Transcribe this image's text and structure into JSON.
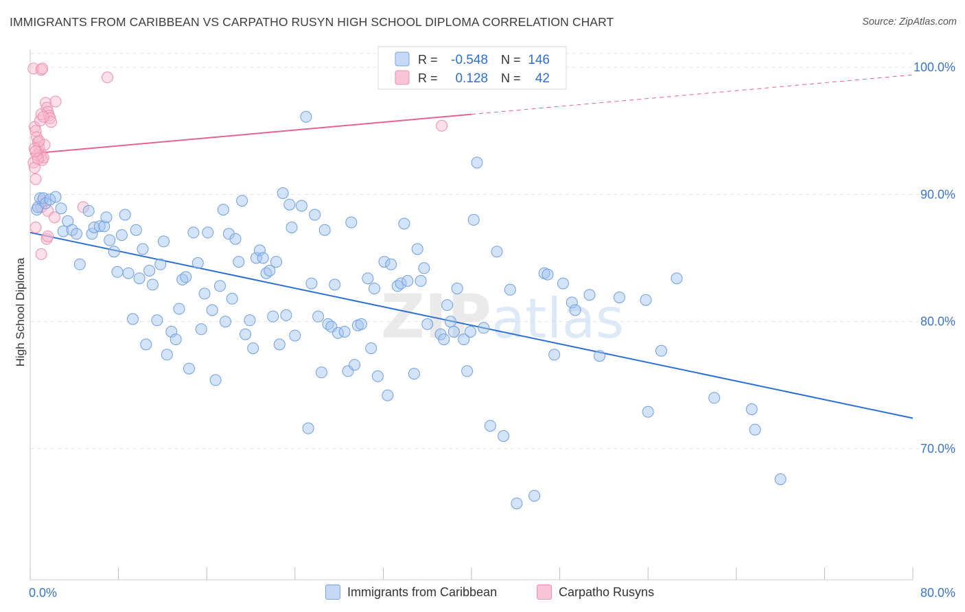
{
  "title": "IMMIGRANTS FROM CARIBBEAN VS CARPATHO RUSYN HIGH SCHOOL DIPLOMA CORRELATION CHART",
  "source": "Source: ZipAtlas.com",
  "watermark": {
    "zip": "ZIP",
    "atlas": "atlas"
  },
  "legend": {
    "r_label": "R =",
    "n_label": "N =",
    "rows": [
      {
        "r": "-0.548",
        "n": "146",
        "swatch_fill": "#c5d8f5",
        "swatch_stroke": "#7aa3e0"
      },
      {
        "r": "0.128",
        "n": "42",
        "swatch_fill": "#f9c5d6",
        "swatch_stroke": "#ec8fb0"
      }
    ]
  },
  "colors": {
    "blue_fill": "rgba(160,195,240,0.45)",
    "blue_stroke": "#6f9ee0",
    "blue_line": "#2a6fd1",
    "pink_fill": "rgba(248,185,205,0.45)",
    "pink_stroke": "#ec8fb0",
    "pink_line": "#e2638e",
    "axis_text": "#3b74c9",
    "grid": "#e3e3e3"
  },
  "chart_data": {
    "type": "scatter",
    "title": "IMMIGRANTS FROM CARIBBEAN VS CARPATHO RUSYN HIGH SCHOOL DIPLOMA CORRELATION CHART",
    "xlabel": "",
    "ylabel": "High School Diploma",
    "xlim": [
      0,
      80
    ],
    "ylim": [
      60,
      102
    ],
    "x_tick_labels": [
      "0.0%",
      "80.0%"
    ],
    "y_ticks": [
      70,
      80,
      90,
      100
    ],
    "y_tick_labels": [
      "70.0%",
      "80.0%",
      "90.0%",
      "100.0%"
    ],
    "grid": true,
    "legend_position": "top-center",
    "series": [
      {
        "name": "Immigrants from Caribbean",
        "color": "#7aa3e0",
        "trend": {
          "x": [
            0,
            80
          ],
          "y": [
            87.0,
            72.4
          ]
        },
        "points": [
          [
            0.6,
            88.8
          ],
          [
            0.7,
            89.0
          ],
          [
            0.9,
            89.7
          ],
          [
            1.2,
            89.7
          ],
          [
            1.4,
            89.3
          ],
          [
            1.8,
            89.6
          ],
          [
            2.3,
            89.8
          ],
          [
            2.8,
            88.9
          ],
          [
            3.0,
            87.1
          ],
          [
            3.4,
            87.9
          ],
          [
            3.8,
            87.2
          ],
          [
            4.2,
            86.9
          ],
          [
            4.5,
            84.5
          ],
          [
            5.3,
            88.7
          ],
          [
            5.6,
            86.9
          ],
          [
            5.8,
            87.4
          ],
          [
            6.3,
            87.5
          ],
          [
            6.7,
            87.5
          ],
          [
            6.9,
            88.2
          ],
          [
            7.2,
            86.4
          ],
          [
            7.6,
            85.5
          ],
          [
            7.9,
            83.9
          ],
          [
            8.3,
            86.8
          ],
          [
            8.6,
            88.4
          ],
          [
            8.9,
            83.8
          ],
          [
            9.3,
            80.2
          ],
          [
            9.6,
            87.2
          ],
          [
            9.9,
            83.4
          ],
          [
            10.2,
            85.7
          ],
          [
            10.5,
            78.2
          ],
          [
            10.8,
            84.0
          ],
          [
            11.1,
            82.9
          ],
          [
            11.5,
            80.1
          ],
          [
            11.8,
            84.5
          ],
          [
            12.1,
            86.3
          ],
          [
            12.4,
            77.4
          ],
          [
            12.8,
            79.2
          ],
          [
            13.2,
            78.6
          ],
          [
            13.5,
            81.0
          ],
          [
            13.8,
            83.3
          ],
          [
            14.1,
            83.5
          ],
          [
            14.4,
            76.3
          ],
          [
            14.8,
            87.0
          ],
          [
            15.2,
            84.6
          ],
          [
            15.5,
            79.4
          ],
          [
            15.8,
            82.2
          ],
          [
            16.1,
            87.0
          ],
          [
            16.5,
            80.9
          ],
          [
            16.8,
            75.4
          ],
          [
            17.2,
            82.8
          ],
          [
            17.5,
            88.8
          ],
          [
            17.7,
            80.0
          ],
          [
            18.0,
            86.9
          ],
          [
            18.3,
            81.8
          ],
          [
            18.6,
            86.5
          ],
          [
            18.9,
            84.7
          ],
          [
            19.2,
            89.5
          ],
          [
            19.5,
            79.0
          ],
          [
            19.9,
            80.1
          ],
          [
            20.2,
            77.9
          ],
          [
            20.5,
            85.0
          ],
          [
            20.8,
            85.6
          ],
          [
            21.1,
            85.0
          ],
          [
            21.4,
            83.8
          ],
          [
            21.7,
            84.0
          ],
          [
            22.0,
            80.4
          ],
          [
            22.3,
            84.7
          ],
          [
            22.6,
            78.2
          ],
          [
            22.9,
            90.1
          ],
          [
            23.2,
            80.5
          ],
          [
            23.5,
            89.2
          ],
          [
            23.7,
            87.4
          ],
          [
            24.0,
            78.9
          ],
          [
            24.6,
            89.1
          ],
          [
            25.2,
            71.6
          ],
          [
            25.5,
            83.0
          ],
          [
            25.8,
            88.4
          ],
          [
            26.1,
            80.4
          ],
          [
            26.4,
            76.0
          ],
          [
            26.7,
            87.2
          ],
          [
            27.0,
            79.8
          ],
          [
            27.3,
            79.6
          ],
          [
            27.6,
            82.9
          ],
          [
            27.9,
            79.1
          ],
          [
            28.5,
            79.2
          ],
          [
            28.8,
            76.1
          ],
          [
            29.1,
            87.8
          ],
          [
            29.4,
            76.6
          ],
          [
            29.7,
            79.7
          ],
          [
            30.0,
            79.8
          ],
          [
            30.6,
            83.4
          ],
          [
            30.9,
            77.9
          ],
          [
            31.2,
            82.6
          ],
          [
            31.5,
            75.7
          ],
          [
            32.1,
            84.7
          ],
          [
            32.4,
            74.2
          ],
          [
            32.7,
            84.5
          ],
          [
            33.3,
            82.8
          ],
          [
            33.6,
            83.0
          ],
          [
            33.9,
            87.7
          ],
          [
            34.2,
            83.2
          ],
          [
            34.8,
            75.9
          ],
          [
            35.1,
            85.7
          ],
          [
            35.4,
            83.2
          ],
          [
            35.7,
            84.2
          ],
          [
            36.0,
            79.8
          ],
          [
            37.2,
            79.0
          ],
          [
            37.5,
            78.6
          ],
          [
            37.8,
            81.3
          ],
          [
            38.1,
            80.0
          ],
          [
            38.4,
            79.2
          ],
          [
            38.7,
            82.6
          ],
          [
            39.3,
            78.6
          ],
          [
            39.6,
            76.1
          ],
          [
            39.9,
            79.2
          ],
          [
            40.2,
            88.0
          ],
          [
            40.5,
            92.5
          ],
          [
            41.1,
            79.5
          ],
          [
            41.7,
            71.8
          ],
          [
            42.3,
            85.5
          ],
          [
            42.9,
            71.0
          ],
          [
            43.5,
            82.5
          ],
          [
            44.1,
            65.7
          ],
          [
            45.7,
            66.3
          ],
          [
            46.6,
            83.8
          ],
          [
            46.9,
            83.7
          ],
          [
            47.5,
            77.4
          ],
          [
            48.3,
            83.0
          ],
          [
            49.1,
            81.5
          ],
          [
            49.4,
            80.9
          ],
          [
            50.7,
            82.1
          ],
          [
            51.6,
            77.3
          ],
          [
            53.4,
            81.9
          ],
          [
            55.8,
            81.7
          ],
          [
            56.0,
            72.9
          ],
          [
            57.2,
            77.7
          ],
          [
            58.6,
            83.4
          ],
          [
            62.0,
            74.0
          ],
          [
            65.4,
            73.1
          ],
          [
            65.7,
            71.5
          ],
          [
            68.0,
            67.6
          ],
          [
            25.0,
            96.1
          ]
        ]
      },
      {
        "name": "Carpatho Rusyns",
        "color": "#ec8fb0",
        "trend": {
          "x": [
            0,
            40
          ],
          "y": [
            93.2,
            96.3
          ]
        },
        "trend_dashed": {
          "x": [
            40,
            80
          ],
          "y": [
            96.3,
            99.4
          ]
        },
        "points": [
          [
            0.3,
            99.9
          ],
          [
            1.0,
            99.8
          ],
          [
            1.1,
            99.9
          ],
          [
            1.4,
            97.2
          ],
          [
            1.5,
            96.8
          ],
          [
            1.6,
            96.5
          ],
          [
            1.7,
            96.2
          ],
          [
            1.8,
            96.0
          ],
          [
            1.9,
            95.7
          ],
          [
            2.3,
            97.3
          ],
          [
            0.4,
            95.3
          ],
          [
            0.5,
            95.0
          ],
          [
            0.6,
            94.5
          ],
          [
            0.7,
            94.1
          ],
          [
            0.8,
            93.7
          ],
          [
            0.9,
            93.3
          ],
          [
            1.0,
            93.0
          ],
          [
            1.1,
            92.7
          ],
          [
            1.2,
            92.9
          ],
          [
            1.3,
            93.9
          ],
          [
            0.3,
            92.5
          ],
          [
            0.4,
            92.1
          ],
          [
            0.5,
            91.2
          ],
          [
            0.6,
            93.1
          ],
          [
            0.7,
            92.8
          ],
          [
            0.8,
            94.2
          ],
          [
            0.9,
            95.8
          ],
          [
            1.0,
            96.3
          ],
          [
            0.4,
            93.6
          ],
          [
            1.0,
            89.0
          ],
          [
            1.1,
            89.5
          ],
          [
            1.6,
            88.7
          ],
          [
            2.2,
            88.2
          ],
          [
            0.5,
            87.4
          ],
          [
            1.5,
            86.5
          ],
          [
            1.6,
            86.7
          ],
          [
            1.0,
            85.3
          ],
          [
            4.8,
            89.0
          ],
          [
            7.0,
            99.2
          ],
          [
            37.3,
            95.4
          ],
          [
            1.2,
            96.1
          ],
          [
            0.5,
            93.4
          ]
        ]
      }
    ]
  }
}
